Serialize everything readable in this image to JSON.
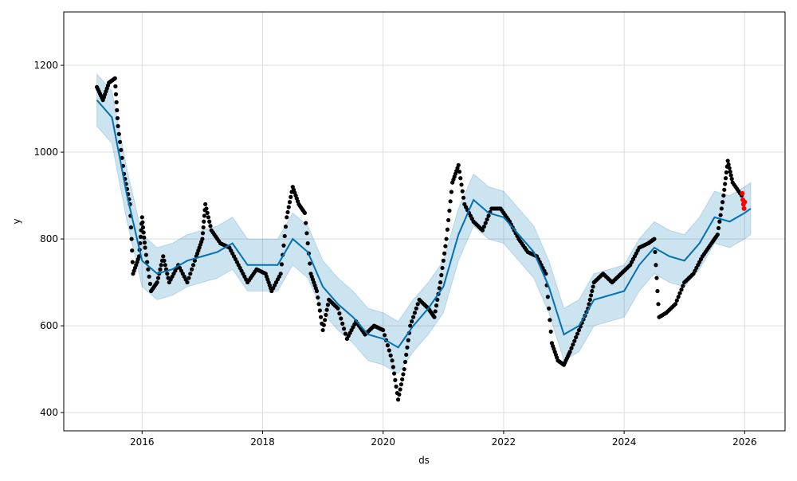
{
  "chart_data": {
    "type": "line",
    "title": "",
    "xlabel": "ds",
    "ylabel": "y",
    "xlim": [
      2014.7,
      2026.67
    ],
    "ylim": [
      358,
      1323
    ],
    "xticks": [
      2016,
      2018,
      2020,
      2022,
      2024,
      2026
    ],
    "xtick_labels": [
      "2016",
      "2018",
      "2020",
      "2022",
      "2024",
      "2026"
    ],
    "yticks": [
      400,
      600,
      800,
      1000,
      1200
    ],
    "ytick_labels": [
      "400",
      "600",
      "800",
      "1000",
      "1200"
    ],
    "grid": true,
    "colors": {
      "observed": "#000000",
      "forecast": "#0072B2",
      "band": "#0072B2",
      "highlight": "#ff0000"
    },
    "observed": [
      [
        2015.25,
        1150
      ],
      [
        2015.35,
        1120
      ],
      [
        2015.45,
        1160
      ],
      [
        2015.55,
        1170
      ],
      [
        2015.6,
        1060
      ],
      [
        2015.7,
        950
      ],
      [
        2015.8,
        880
      ],
      [
        2015.85,
        720
      ],
      [
        2015.95,
        760
      ],
      [
        2016.0,
        850
      ],
      [
        2016.05,
        780
      ],
      [
        2016.15,
        680
      ],
      [
        2016.25,
        700
      ],
      [
        2016.35,
        760
      ],
      [
        2016.45,
        700
      ],
      [
        2016.6,
        740
      ],
      [
        2016.75,
        700
      ],
      [
        2016.9,
        760
      ],
      [
        2017.0,
        800
      ],
      [
        2017.05,
        880
      ],
      [
        2017.15,
        820
      ],
      [
        2017.3,
        790
      ],
      [
        2017.45,
        780
      ],
      [
        2017.6,
        740
      ],
      [
        2017.75,
        700
      ],
      [
        2017.9,
        730
      ],
      [
        2018.05,
        720
      ],
      [
        2018.15,
        680
      ],
      [
        2018.3,
        720
      ],
      [
        2018.4,
        850
      ],
      [
        2018.5,
        920
      ],
      [
        2018.6,
        880
      ],
      [
        2018.7,
        860
      ],
      [
        2018.8,
        720
      ],
      [
        2018.9,
        680
      ],
      [
        2019.0,
        590
      ],
      [
        2019.1,
        660
      ],
      [
        2019.25,
        640
      ],
      [
        2019.4,
        570
      ],
      [
        2019.55,
        610
      ],
      [
        2019.7,
        580
      ],
      [
        2019.85,
        600
      ],
      [
        2020.0,
        590
      ],
      [
        2020.15,
        520
      ],
      [
        2020.25,
        430
      ],
      [
        2020.35,
        500
      ],
      [
        2020.45,
        600
      ],
      [
        2020.6,
        660
      ],
      [
        2020.75,
        640
      ],
      [
        2020.85,
        620
      ],
      [
        2020.95,
        700
      ],
      [
        2021.05,
        800
      ],
      [
        2021.15,
        930
      ],
      [
        2021.25,
        970
      ],
      [
        2021.35,
        880
      ],
      [
        2021.5,
        840
      ],
      [
        2021.65,
        820
      ],
      [
        2021.8,
        870
      ],
      [
        2021.95,
        870
      ],
      [
        2022.1,
        840
      ],
      [
        2022.25,
        800
      ],
      [
        2022.4,
        770
      ],
      [
        2022.55,
        760
      ],
      [
        2022.7,
        720
      ],
      [
        2022.8,
        560
      ],
      [
        2022.9,
        520
      ],
      [
        2023.0,
        510
      ],
      [
        2023.1,
        540
      ],
      [
        2023.25,
        590
      ],
      [
        2023.4,
        640
      ],
      [
        2023.5,
        700
      ],
      [
        2023.65,
        720
      ],
      [
        2023.8,
        700
      ],
      [
        2023.95,
        720
      ],
      [
        2024.1,
        740
      ],
      [
        2024.25,
        780
      ],
      [
        2024.4,
        790
      ],
      [
        2024.5,
        800
      ],
      [
        2024.58,
        620
      ],
      [
        2024.7,
        630
      ],
      [
        2024.85,
        650
      ],
      [
        2025.0,
        700
      ],
      [
        2025.15,
        720
      ],
      [
        2025.3,
        760
      ],
      [
        2025.45,
        790
      ],
      [
        2025.55,
        810
      ],
      [
        2025.65,
        900
      ],
      [
        2025.72,
        980
      ],
      [
        2025.8,
        930
      ],
      [
        2025.95,
        900
      ]
    ],
    "forecast": [
      [
        2015.25,
        1120
      ],
      [
        2015.5,
        1080
      ],
      [
        2015.75,
        900
      ],
      [
        2016.0,
        750
      ],
      [
        2016.25,
        720
      ],
      [
        2016.5,
        730
      ],
      [
        2016.75,
        750
      ],
      [
        2017.0,
        760
      ],
      [
        2017.25,
        770
      ],
      [
        2017.5,
        790
      ],
      [
        2017.75,
        740
      ],
      [
        2018.0,
        740
      ],
      [
        2018.25,
        740
      ],
      [
        2018.5,
        800
      ],
      [
        2018.75,
        770
      ],
      [
        2019.0,
        690
      ],
      [
        2019.25,
        650
      ],
      [
        2019.5,
        620
      ],
      [
        2019.75,
        580
      ],
      [
        2020.0,
        570
      ],
      [
        2020.25,
        550
      ],
      [
        2020.5,
        600
      ],
      [
        2020.75,
        640
      ],
      [
        2021.0,
        690
      ],
      [
        2021.25,
        810
      ],
      [
        2021.5,
        890
      ],
      [
        2021.75,
        860
      ],
      [
        2022.0,
        850
      ],
      [
        2022.25,
        810
      ],
      [
        2022.5,
        770
      ],
      [
        2022.75,
        690
      ],
      [
        2023.0,
        580
      ],
      [
        2023.25,
        600
      ],
      [
        2023.5,
        660
      ],
      [
        2023.75,
        670
      ],
      [
        2024.0,
        680
      ],
      [
        2024.25,
        740
      ],
      [
        2024.5,
        780
      ],
      [
        2024.75,
        760
      ],
      [
        2025.0,
        750
      ],
      [
        2025.25,
        790
      ],
      [
        2025.5,
        850
      ],
      [
        2025.75,
        840
      ],
      [
        2026.0,
        860
      ],
      [
        2026.1,
        870
      ]
    ],
    "band_halfwidth": 60,
    "highlight": [
      [
        2025.96,
        905
      ],
      [
        2025.97,
        890
      ],
      [
        2025.98,
        880
      ],
      [
        2025.99,
        870
      ],
      [
        2026.0,
        885
      ]
    ]
  }
}
